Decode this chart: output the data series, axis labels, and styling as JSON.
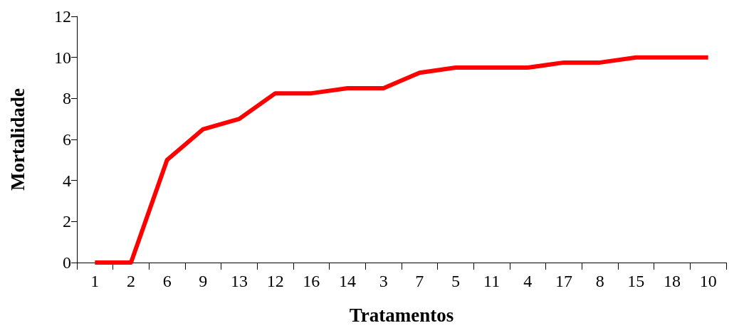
{
  "chart_data": {
    "type": "line",
    "xlabel": "Tratamentos",
    "ylabel": "Mortalidade",
    "categories": [
      "1",
      "2",
      "6",
      "9",
      "13",
      "12",
      "16",
      "14",
      "3",
      "7",
      "5",
      "11",
      "4",
      "17",
      "8",
      "15",
      "18",
      "10"
    ],
    "series": [
      {
        "color": "#ff0000",
        "values": [
          0,
          0,
          5,
          6.5,
          7,
          8.25,
          8.25,
          8.5,
          8.5,
          9.25,
          9.5,
          9.5,
          9.5,
          9.75,
          9.75,
          10,
          10,
          10
        ]
      }
    ],
    "ylim": [
      0,
      12
    ],
    "yticks": [
      0,
      2,
      4,
      6,
      8,
      10,
      12
    ],
    "grid": false,
    "legend": false,
    "marker": "none",
    "line_style": "solid"
  }
}
